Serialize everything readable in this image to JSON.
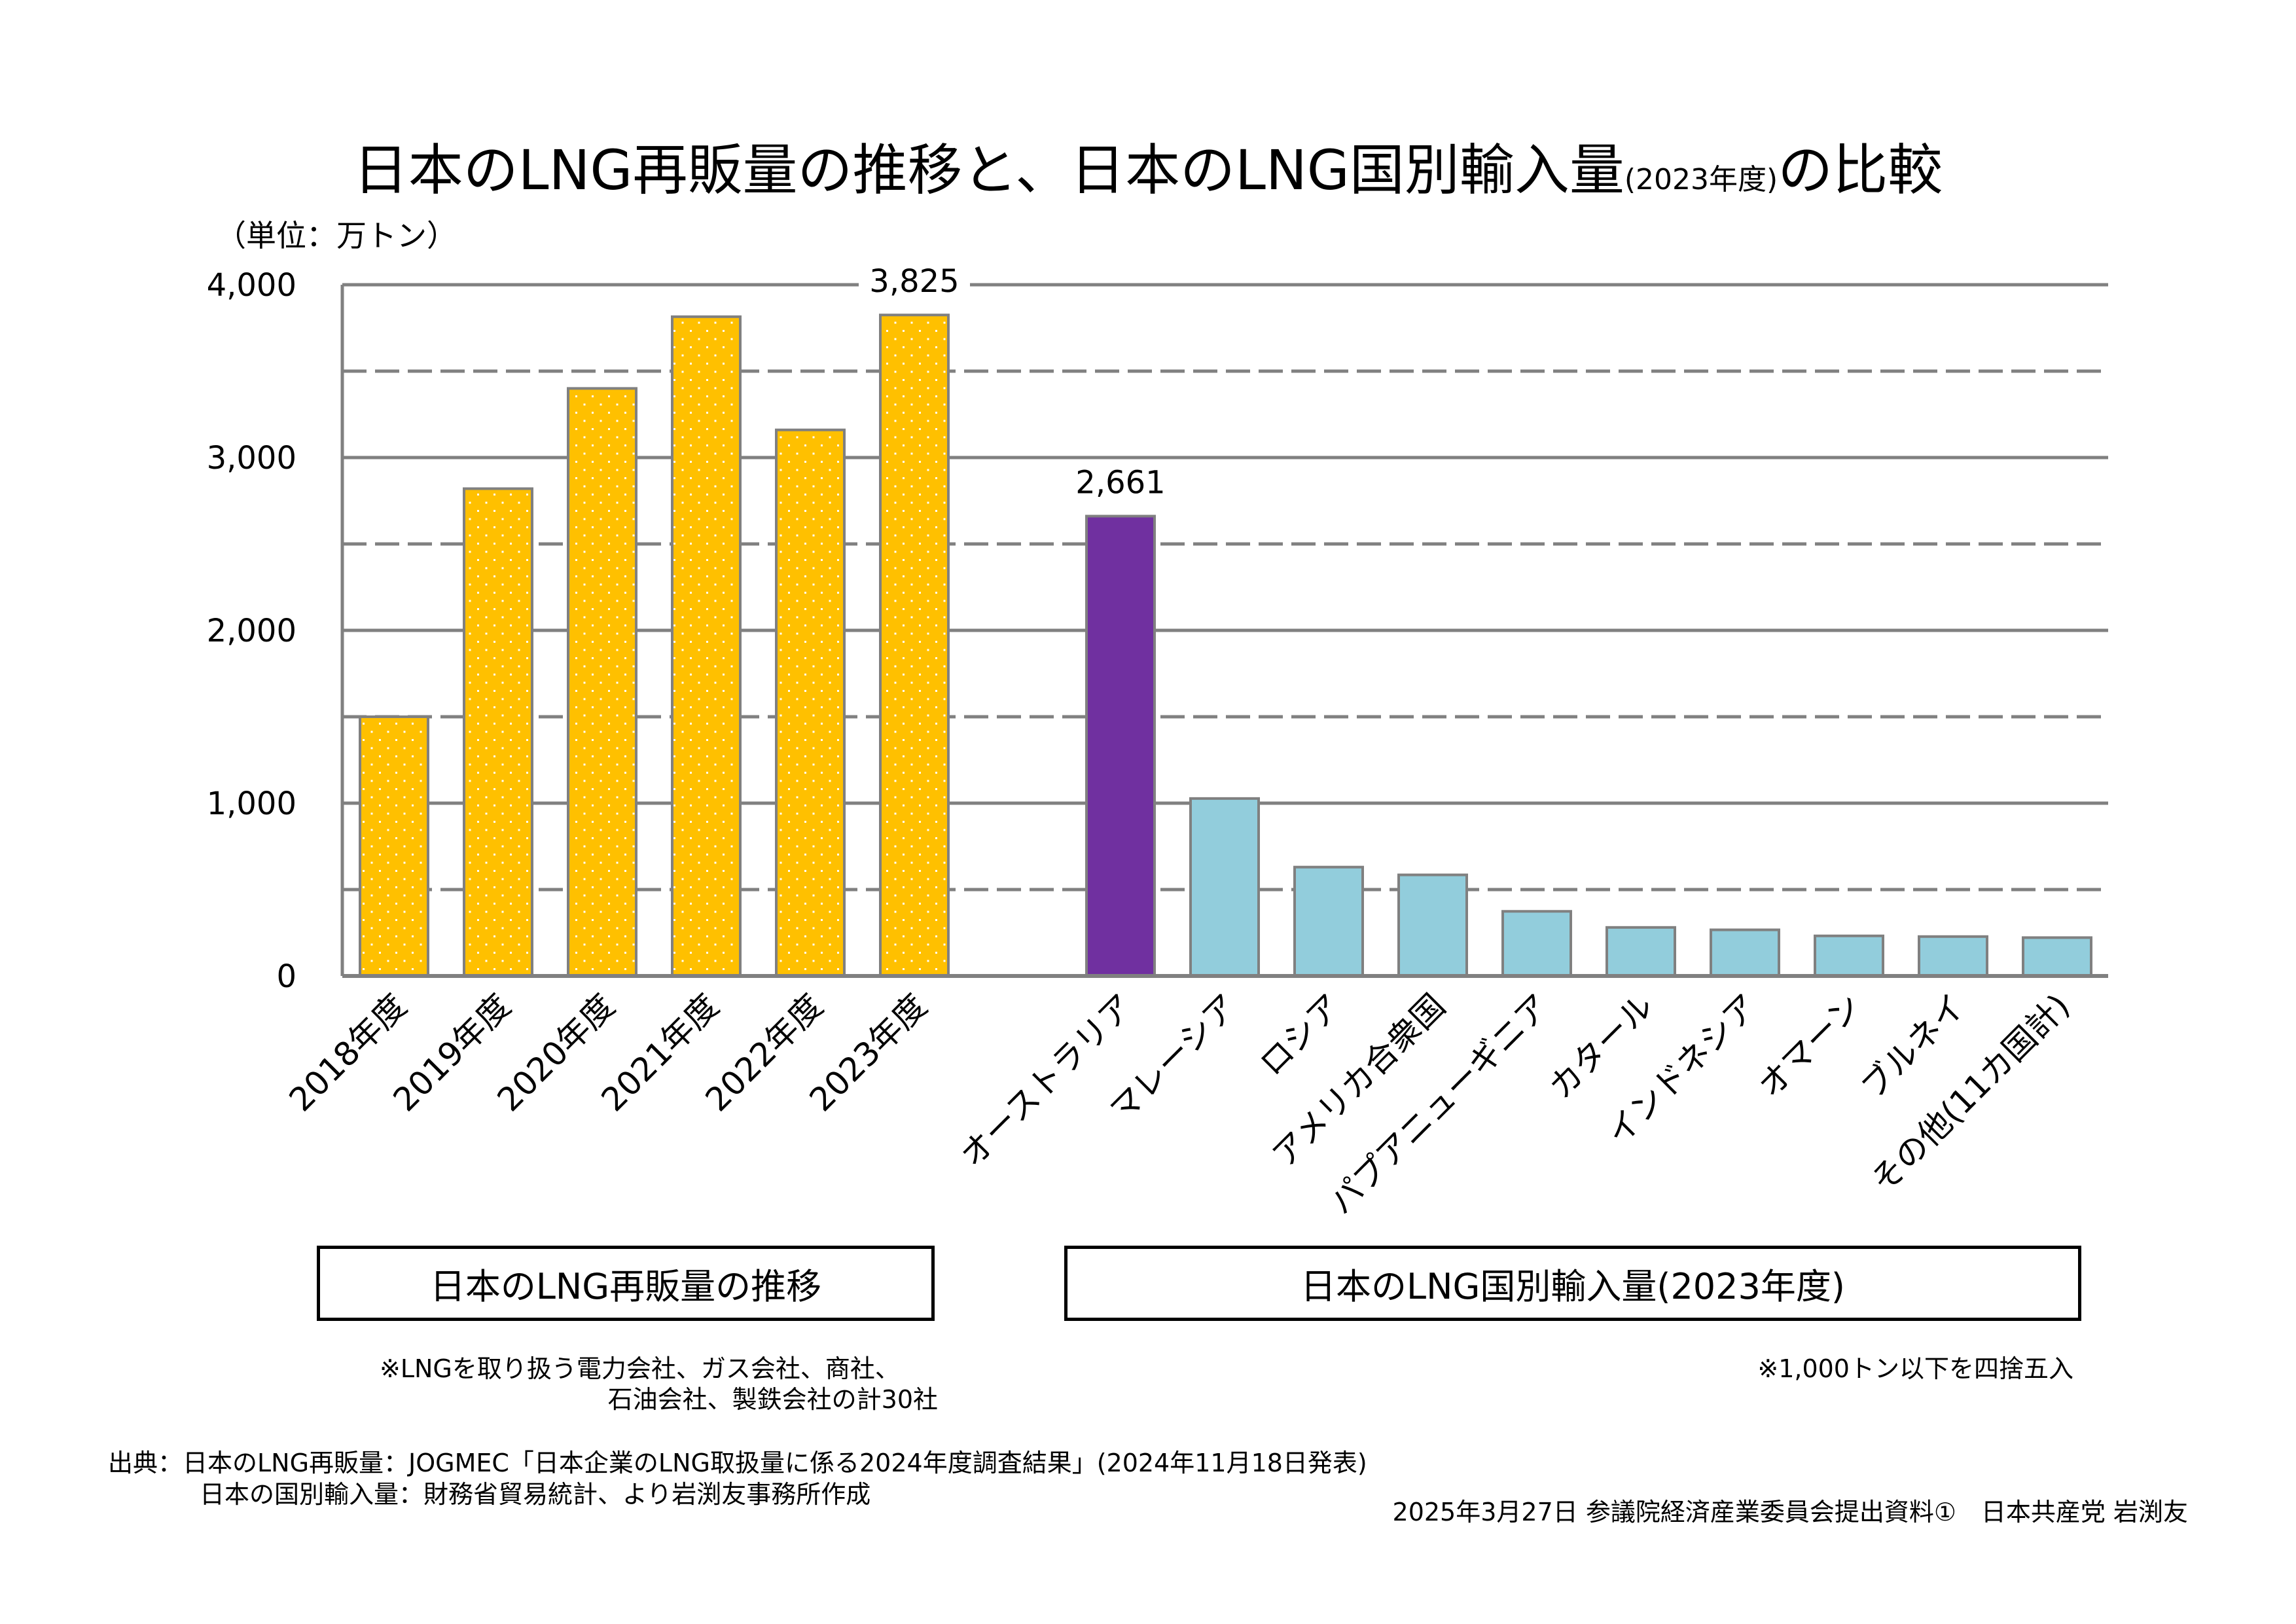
{
  "title": {
    "main_part1": "日本のLNG再販量の推移と、日本のLNG国別輸入量",
    "small_part": "(2023年度)",
    "main_part2": "の比較"
  },
  "unit_label": "（単位：万トン）",
  "colors": {
    "resale_bar": "#FFC000",
    "australia_bar": "#7030A0",
    "import_bar": "#92CDDC",
    "bar_border": "#808080",
    "gridline": "#808080"
  },
  "chart_data": {
    "type": "bar",
    "ylabel": "（単位：万トン）",
    "ylim": [
      0,
      4000
    ],
    "yticks": [
      0,
      1000,
      2000,
      3000,
      4000
    ],
    "ytick_labels": [
      "0",
      "1,000",
      "2,000",
      "3,000",
      "4,000"
    ],
    "grid": true,
    "minor_dashed_gridlines": [
      500,
      1500,
      2500,
      3500
    ],
    "groups": [
      {
        "name": "日本のLNG再販量の推移",
        "categories": [
          "2018年度",
          "2019年度",
          "2020年度",
          "2021年度",
          "2022年度",
          "2023年度"
        ],
        "values": [
          1500,
          2820,
          3400,
          3815,
          3160,
          3825
        ],
        "data_labels": {
          "5": "3,825"
        },
        "pattern": "dotted"
      },
      {
        "name": "日本のLNG国別輸入量(2023年度)",
        "categories": [
          "オーストラリア",
          "マレーシア",
          "ロシア",
          "アメリカ合衆国",
          "パプアニューギニア",
          "カタール",
          "インドネシア",
          "オマーン",
          "ブルネイ",
          "その他(11カ国計)"
        ],
        "values": [
          2661,
          1027,
          630,
          585,
          374,
          281,
          267,
          232,
          228,
          222
        ],
        "data_labels": {
          "0": "2,661"
        },
        "highlight_index": 0
      }
    ]
  },
  "group_boxes": {
    "left": "日本のLNG再販量の推移",
    "right": "日本のLNG国別輸入量(2023年度)"
  },
  "notes": {
    "left_line1": "※LNGを取り扱う電力会社、ガス会社、商社、",
    "left_line2": "石油会社、製鉄会社の計30社",
    "right": "※1,000トン以下を四捨五入"
  },
  "source": {
    "line1": "出典：日本のLNG再販量：JOGMEC「日本企業のLNG取扱量に係る2024年度調査結果」(2024年11月18日発表)",
    "line2": "日本の国別輸入量：財務省貿易統計、より岩渕友事務所作成"
  },
  "footer": "2025年3月27日 参議院経済産業委員会提出資料①　日本共産党 岩渕友"
}
